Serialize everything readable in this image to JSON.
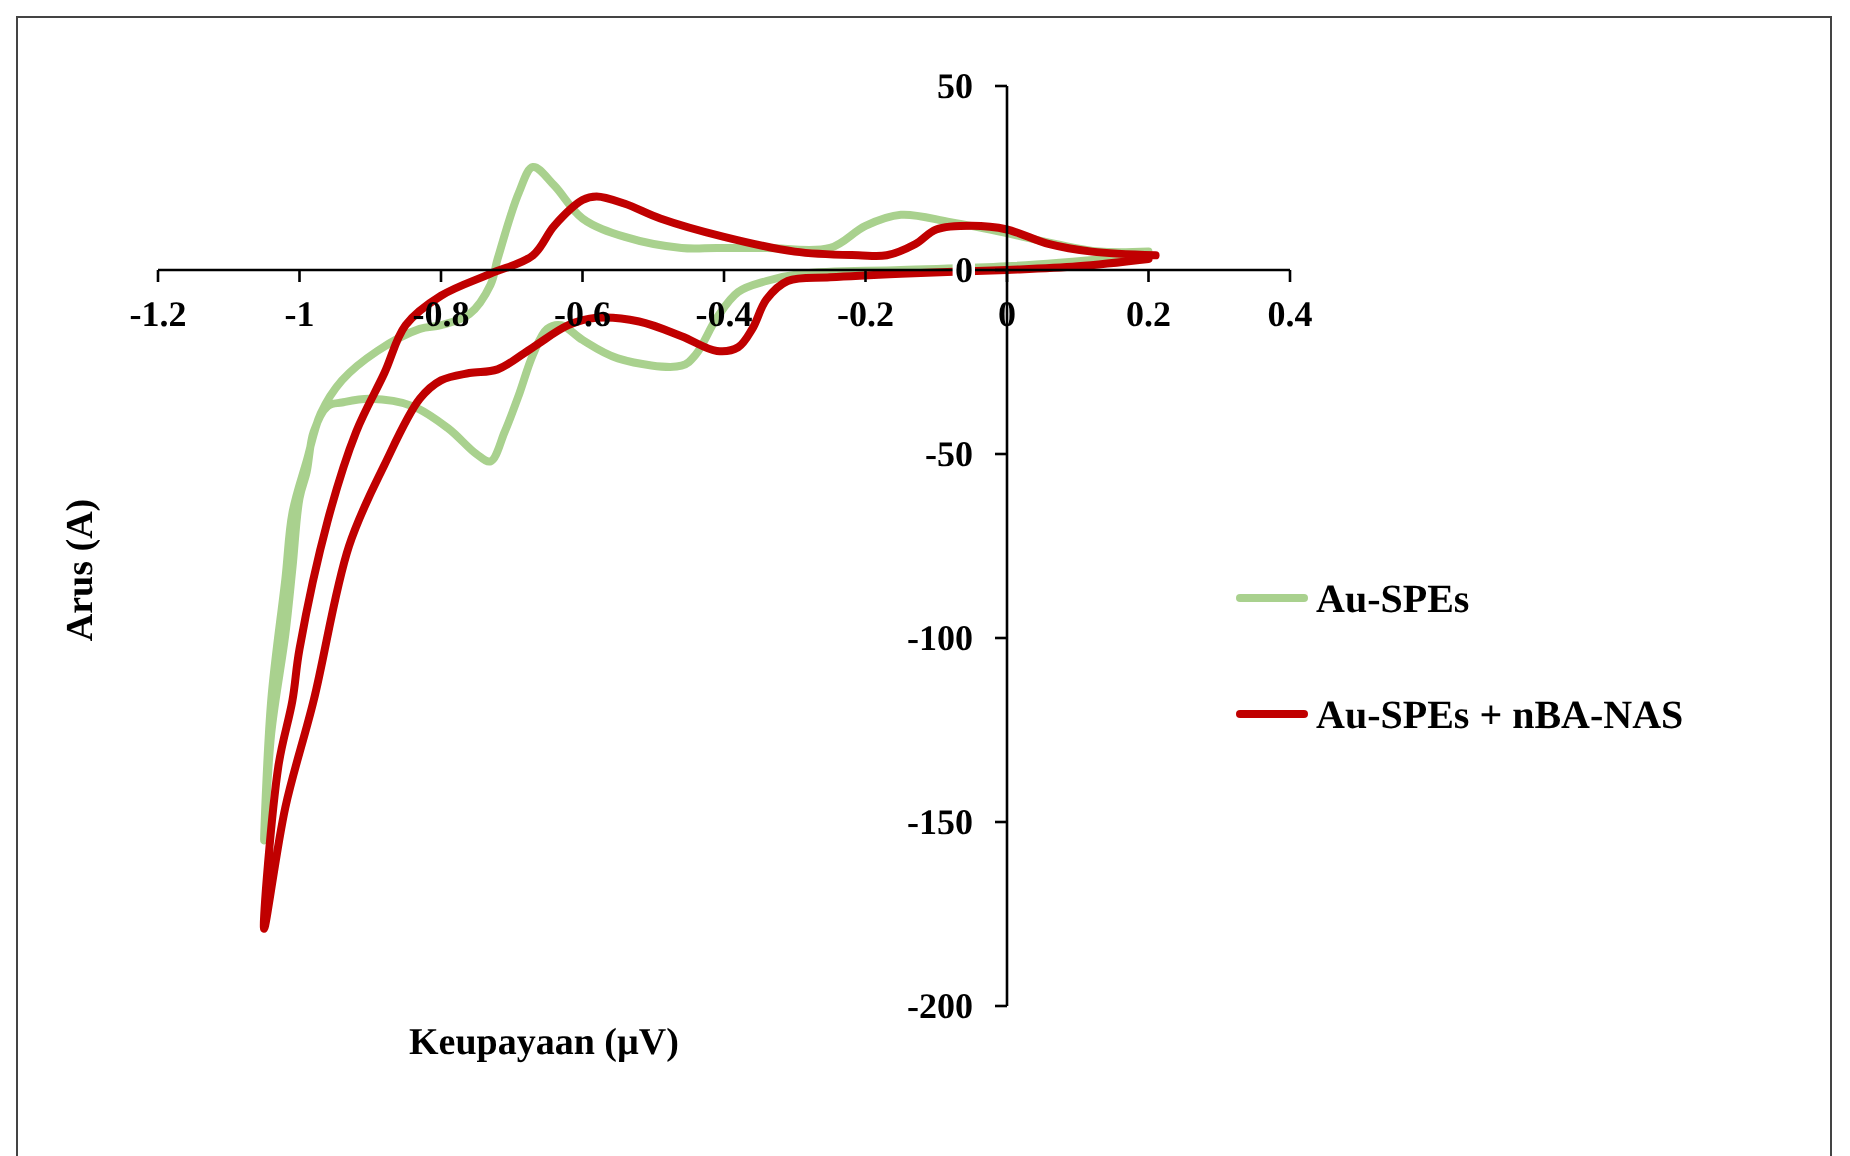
{
  "chart_data": {
    "type": "line",
    "xlabel": "Keupayaan (µV)",
    "ylabel": "Arus (A)",
    "xlim": [
      -1.2,
      0.4
    ],
    "ylim": [
      -200,
      50
    ],
    "xticks": [
      -1.2,
      -1,
      -0.8,
      -0.6,
      -0.4,
      -0.2,
      0,
      0.2,
      0.4
    ],
    "yticks": [
      -200,
      -150,
      -100,
      -50,
      0,
      50
    ],
    "legend": "right",
    "series": [
      {
        "name": "Au-SPEs",
        "color": "#a9d18e",
        "x": [
          0.2,
          0.13,
          0.07,
          0,
          -0.08,
          -0.15,
          -0.2,
          -0.25,
          -0.34,
          -0.41,
          -0.46,
          -0.54,
          -0.6,
          -0.64,
          -0.67,
          -0.69,
          -0.72,
          -0.73,
          -0.76,
          -0.8,
          -0.83,
          -0.89,
          -0.94,
          -0.97,
          -0.99,
          -1.01,
          -1.02,
          -1.04,
          -1.05,
          -1.04,
          -1.02,
          -1.01,
          -1,
          -0.99,
          -0.98,
          -0.96,
          -0.94,
          -0.9,
          -0.84,
          -0.79,
          -0.75,
          -0.73,
          -0.71,
          -0.69,
          -0.67,
          -0.65,
          -0.63,
          -0.6,
          -0.55,
          -0.46,
          -0.44,
          -0.41,
          -0.38,
          -0.34,
          -0.29,
          -0.15,
          0,
          0.2
        ],
        "values": [
          5,
          5,
          7,
          10,
          13,
          15,
          12,
          6,
          6,
          6,
          6,
          9,
          14,
          23,
          28,
          21,
          3,
          -4,
          -12,
          -15,
          -16,
          -22,
          -30,
          -39,
          -52,
          -66,
          -84,
          -117,
          -155,
          -126,
          -99,
          -81,
          -62,
          -55,
          -44,
          -37,
          -36,
          -35,
          -37,
          -43,
          -50,
          -52,
          -44,
          -34,
          -23,
          -16,
          -15,
          -19,
          -24,
          -26,
          -23,
          -13,
          -6,
          -3,
          -1,
          0,
          1,
          4
        ]
      },
      {
        "name": "Au-SPEs + nBA-NAS",
        "color": "#c00000",
        "x": [
          0.21,
          0.12,
          0.06,
          0,
          -0.05,
          -0.1,
          -0.13,
          -0.17,
          -0.21,
          -0.3,
          -0.4,
          -0.49,
          -0.54,
          -0.58,
          -0.6,
          -0.64,
          -0.67,
          -0.73,
          -0.8,
          -0.85,
          -0.88,
          -0.92,
          -0.96,
          -1,
          -1.01,
          -1.03,
          -1.05,
          -1.02,
          -0.98,
          -0.93,
          -0.88,
          -0.83,
          -0.8,
          -0.76,
          -0.72,
          -0.67,
          -0.62,
          -0.58,
          -0.52,
          -0.46,
          -0.41,
          -0.38,
          -0.36,
          -0.34,
          -0.31,
          -0.25,
          -0.15,
          0,
          0.1,
          0.2
        ],
        "values": [
          4,
          5,
          7,
          11,
          12,
          11,
          7,
          4,
          4,
          5,
          9,
          14,
          18,
          20,
          19,
          12,
          4,
          -1,
          -7,
          -15,
          -28,
          -44,
          -68,
          -103,
          -117,
          -135,
          -179,
          -146,
          -117,
          -75,
          -53,
          -35,
          -30,
          -28,
          -27,
          -21,
          -15,
          -13,
          -14,
          -18,
          -22,
          -21,
          -16,
          -8,
          -3,
          -2,
          -1,
          0,
          1,
          3
        ]
      }
    ]
  }
}
